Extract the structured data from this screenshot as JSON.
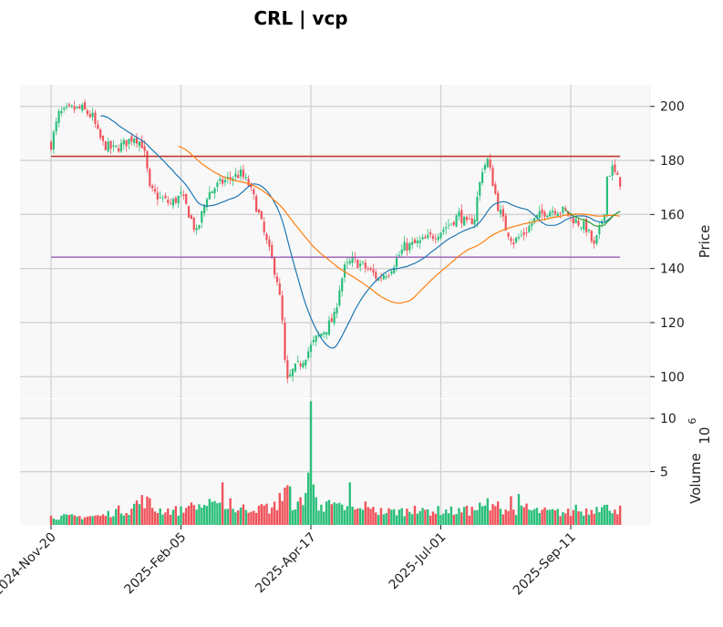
{
  "chart_data": {
    "type": "candlestick",
    "title": "CRL | vcp",
    "price_axis": {
      "label": "Price",
      "ylim": [
        92,
        208
      ],
      "ticks": [
        100,
        120,
        140,
        160,
        180,
        200
      ]
    },
    "volume_axis": {
      "label": "Volume",
      "exponent_label": "10",
      "exponent": "6",
      "ylim": [
        0,
        11.8
      ],
      "ticks": [
        5,
        10
      ]
    },
    "x_tick_labels": [
      "2024-Nov-20",
      "2025-Feb-05",
      "2025-Apr-17",
      "2025-Jul-01",
      "2025-Sep-11"
    ],
    "x_tick_index": [
      0,
      50,
      100,
      150,
      200
    ],
    "n_bars": 220,
    "colors": {
      "up": "#2bbf7a",
      "down": "#f0535b",
      "ma_short": "#1f77b4",
      "ma_long": "#ff7f0e",
      "ma_recent": "#2ca02c",
      "resistance": "#c0392b",
      "support": "#9b59b6",
      "panel_bg": "#f8f8f8",
      "grid": "#d2d2d2"
    },
    "resistance_level": 181.5,
    "support_level": 144.2,
    "close_anchors": [
      [
        0,
        186
      ],
      [
        3,
        197
      ],
      [
        8,
        199
      ],
      [
        12,
        199
      ],
      [
        16,
        196
      ],
      [
        18,
        190
      ],
      [
        20,
        186
      ],
      [
        24,
        184
      ],
      [
        28,
        186
      ],
      [
        32,
        189
      ],
      [
        35,
        186
      ],
      [
        36,
        182
      ],
      [
        37,
        176
      ],
      [
        38,
        169
      ],
      [
        42,
        166
      ],
      [
        46,
        164
      ],
      [
        50,
        167
      ],
      [
        52,
        163
      ],
      [
        54,
        158
      ],
      [
        56,
        153
      ],
      [
        58,
        160
      ],
      [
        60,
        167
      ],
      [
        63,
        170
      ],
      [
        66,
        172
      ],
      [
        70,
        174
      ],
      [
        73,
        175
      ],
      [
        76,
        171
      ],
      [
        78,
        166
      ],
      [
        80,
        160
      ],
      [
        82,
        153
      ],
      [
        85,
        143
      ],
      [
        87,
        136
      ],
      [
        88,
        129
      ],
      [
        89,
        120
      ],
      [
        90,
        105
      ],
      [
        91,
        98
      ],
      [
        93,
        102
      ],
      [
        96,
        105
      ],
      [
        98,
        108
      ],
      [
        102,
        114
      ],
      [
        106,
        118
      ],
      [
        109,
        122
      ],
      [
        111,
        133
      ],
      [
        113,
        140
      ],
      [
        116,
        143
      ],
      [
        120,
        141
      ],
      [
        124,
        138
      ],
      [
        126,
        136
      ],
      [
        128,
        138
      ],
      [
        130,
        139
      ],
      [
        132,
        142
      ],
      [
        136,
        148
      ],
      [
        140,
        149
      ],
      [
        145,
        151
      ],
      [
        150,
        154
      ],
      [
        154,
        157
      ],
      [
        157,
        160
      ],
      [
        160,
        156
      ],
      [
        163,
        159
      ],
      [
        164,
        166
      ],
      [
        166,
        177
      ],
      [
        168,
        180
      ],
      [
        170,
        172
      ],
      [
        172,
        163
      ],
      [
        175,
        155
      ],
      [
        178,
        150
      ],
      [
        182,
        153
      ],
      [
        186,
        158
      ],
      [
        190,
        161
      ],
      [
        194,
        162
      ],
      [
        198,
        161
      ],
      [
        200,
        159
      ],
      [
        203,
        157
      ],
      [
        206,
        155
      ],
      [
        209,
        148
      ],
      [
        211,
        154
      ],
      [
        213,
        162
      ],
      [
        214,
        174
      ],
      [
        216,
        177
      ],
      [
        218,
        173
      ],
      [
        220,
        171
      ]
    ],
    "volume_anchors": [
      [
        0,
        0.8
      ],
      [
        10,
        0.8
      ],
      [
        20,
        0.9
      ],
      [
        25,
        1.4
      ],
      [
        30,
        1.5
      ],
      [
        34,
        2.2
      ],
      [
        36,
        2.5
      ],
      [
        40,
        1.5
      ],
      [
        50,
        1.4
      ],
      [
        55,
        1.8
      ],
      [
        60,
        2.0
      ],
      [
        65,
        1.6
      ],
      [
        70,
        1.5
      ],
      [
        80,
        1.8
      ],
      [
        85,
        1.6
      ],
      [
        88,
        2.2
      ],
      [
        91,
        3.5
      ],
      [
        93,
        2.2
      ],
      [
        97,
        1.8
      ],
      [
        101,
        1.6
      ],
      [
        106,
        1.9
      ],
      [
        112,
        1.7
      ],
      [
        120,
        1.4
      ],
      [
        130,
        1.3
      ],
      [
        140,
        1.4
      ],
      [
        150,
        1.4
      ],
      [
        160,
        1.3
      ],
      [
        165,
        1.7
      ],
      [
        170,
        1.6
      ],
      [
        180,
        1.5
      ],
      [
        190,
        1.3
      ],
      [
        200,
        1.2
      ],
      [
        205,
        1.4
      ],
      [
        210,
        1.6
      ],
      [
        215,
        1.8
      ],
      [
        220,
        1.4
      ]
    ],
    "volume_spikes": [
      [
        33,
        2.3
      ],
      [
        38,
        2.5
      ],
      [
        53,
        1.8
      ],
      [
        65,
        2.1
      ],
      [
        66,
        4.0
      ],
      [
        69,
        2.5
      ],
      [
        80,
        1.8
      ],
      [
        88,
        3.0
      ],
      [
        95,
        2.2
      ],
      [
        96,
        2.6
      ],
      [
        98,
        3.0
      ],
      [
        99,
        4.9
      ],
      [
        100,
        11.6
      ],
      [
        101,
        3.8
      ],
      [
        102,
        2.6
      ],
      [
        104,
        1.9
      ],
      [
        106,
        2.2
      ],
      [
        110,
        2.0
      ],
      [
        112,
        1.9
      ],
      [
        115,
        4.0
      ],
      [
        121,
        2.2
      ],
      [
        124,
        1.7
      ],
      [
        140,
        1.8
      ],
      [
        143,
        1.6
      ],
      [
        160,
        1.8
      ],
      [
        168,
        2.5
      ],
      [
        172,
        2.2
      ],
      [
        177,
        2.7
      ],
      [
        180,
        2.9
      ],
      [
        183,
        2.0
      ],
      [
        202,
        1.9
      ],
      [
        210,
        1.7
      ],
      [
        214,
        1.9
      ]
    ],
    "ma_short_window": 20,
    "ma_long_window": 50,
    "ma_recent_start": 198
  }
}
